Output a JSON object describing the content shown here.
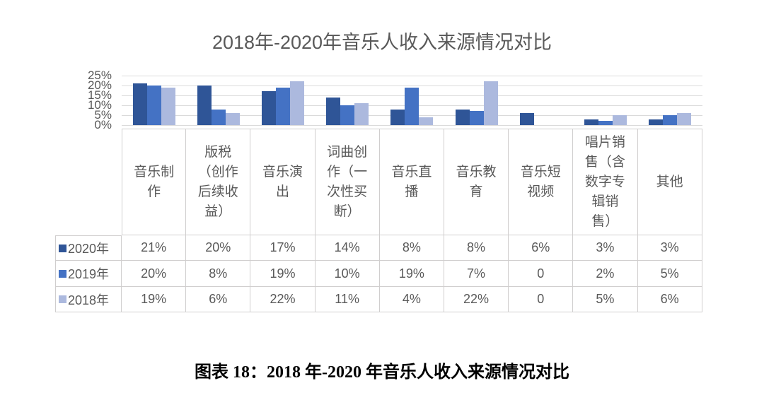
{
  "caption": "图表 18：2018 年-2020 年音乐人收入来源情况对比",
  "colors": {
    "series_2020": "#2F5597",
    "series_2019": "#4472C4",
    "series_2018": "#ACB9DE",
    "gridline": "#DADADA",
    "table_border": "#D0CECE",
    "text_gray": "#595959"
  },
  "chart_data": {
    "type": "bar",
    "title": "2018年-2020年音乐人收入来源情况对比",
    "xlabel": "",
    "ylabel": "",
    "ylim": [
      0,
      25
    ],
    "grid": true,
    "legend_position": "data-table-left",
    "y_ticks": [
      "25%",
      "20%",
      "15%",
      "10%",
      "5%",
      "0%"
    ],
    "categories": [
      "音乐制\n作",
      "版税\n（创作\n后续收\n益）",
      "音乐演\n出",
      "词曲创\n作（一\n次性买\n断）",
      "音乐直\n播",
      "音乐教\n育",
      "音乐短\n视频",
      "唱片销\n售（含\n数字专\n辑销\n售）",
      "其他"
    ],
    "series": [
      {
        "name": "2020年",
        "color": "#2F5597",
        "values": [
          21,
          20,
          17,
          14,
          8,
          8,
          6,
          3,
          3
        ],
        "display": [
          "21%",
          "20%",
          "17%",
          "14%",
          "8%",
          "8%",
          "6%",
          "3%",
          "3%"
        ]
      },
      {
        "name": "2019年",
        "color": "#4472C4",
        "values": [
          20,
          8,
          19,
          10,
          19,
          7,
          0,
          2,
          5
        ],
        "display": [
          "20%",
          "8%",
          "19%",
          "10%",
          "19%",
          "7%",
          "0",
          "2%",
          "5%"
        ]
      },
      {
        "name": "2018年",
        "color": "#ACB9DE",
        "values": [
          19,
          6,
          22,
          11,
          4,
          22,
          0,
          5,
          6
        ],
        "display": [
          "19%",
          "6%",
          "22%",
          "11%",
          "4%",
          "22%",
          "0",
          "5%",
          "6%"
        ]
      }
    ]
  }
}
